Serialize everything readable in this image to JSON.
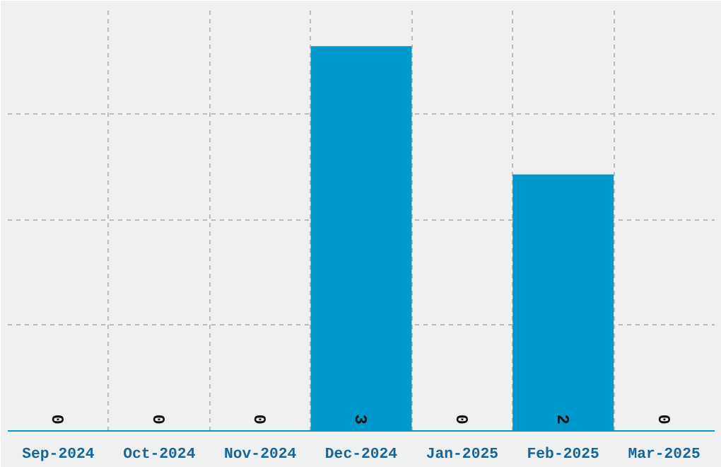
{
  "chart_data": {
    "type": "bar",
    "categories": [
      "Sep-2024",
      "Oct-2024",
      "Nov-2024",
      "Dec-2024",
      "Jan-2025",
      "Feb-2025",
      "Mar-2025"
    ],
    "values": [
      0,
      0,
      0,
      3,
      0,
      2,
      0
    ],
    "color": "#0099cc",
    "data_labels": true,
    "ylim": [
      0,
      3.3
    ],
    "yticks": [
      {
        "value": 0.825,
        "label": null
      },
      {
        "value": 1.65,
        "label": null
      },
      {
        "value": 2.475,
        "label": null
      }
    ],
    "tick_labels": "x",
    "grid": true
  }
}
